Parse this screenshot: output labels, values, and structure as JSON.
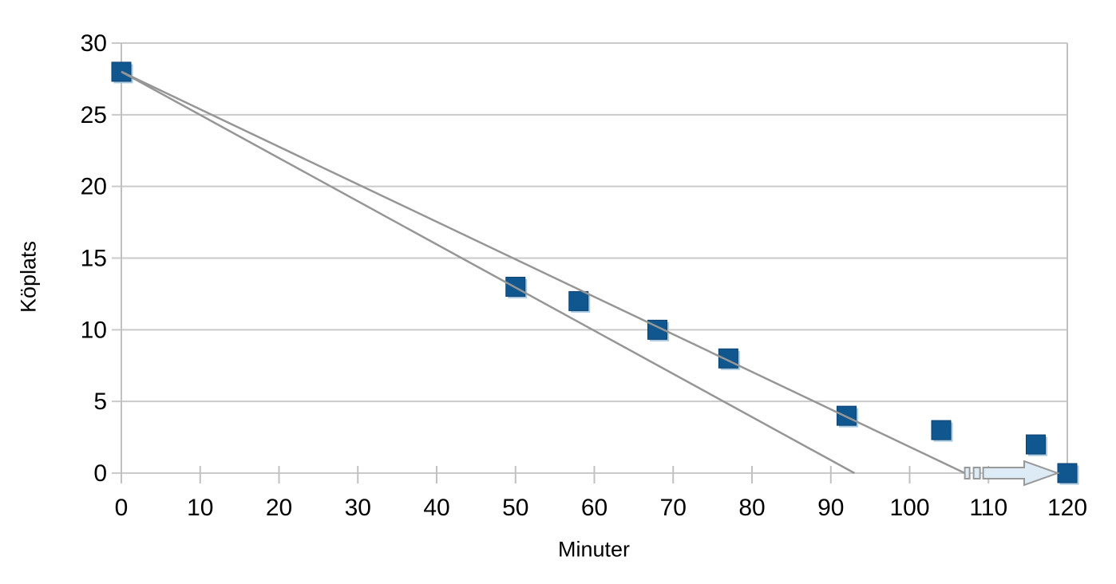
{
  "chart_data": {
    "type": "scatter",
    "title": "",
    "xlabel": "Minuter",
    "ylabel": "Köplats",
    "xlim": [
      0,
      120
    ],
    "ylim": [
      0,
      30
    ],
    "xticks": [
      0,
      10,
      20,
      30,
      40,
      50,
      60,
      70,
      80,
      90,
      100,
      110,
      120
    ],
    "yticks": [
      0,
      5,
      10,
      15,
      20,
      25,
      30
    ],
    "grid": "horizontal-only",
    "legend": "none",
    "series": [
      {
        "name": "Köplats",
        "marker": "square",
        "color": "#11578f",
        "marker_edge": "#0d4170",
        "marker_highlight": "#a7cae2",
        "points": [
          [
            0,
            28
          ],
          [
            50,
            13
          ],
          [
            58,
            12
          ],
          [
            68,
            10
          ],
          [
            77,
            8
          ],
          [
            92,
            4
          ],
          [
            104,
            3
          ],
          [
            116,
            2
          ],
          [
            120,
            0
          ]
        ]
      }
    ],
    "trendlines": [
      {
        "name": "trend-steep",
        "from": [
          0,
          28
        ],
        "to": [
          93,
          0
        ],
        "color": "#969696"
      },
      {
        "name": "trend-shallow",
        "from": [
          0,
          28
        ],
        "to": [
          107,
          0
        ],
        "color": "#969696"
      }
    ],
    "annotations": [
      {
        "type": "striped-right-arrow",
        "from_x": 107,
        "to_x": 120,
        "y": 0,
        "fill": "#ddebf7",
        "stroke": "#999999"
      }
    ],
    "colors": {
      "gridline": "#cacaca",
      "axis": "#c1c1c1",
      "text": "#000000",
      "background": "#ffffff"
    }
  }
}
